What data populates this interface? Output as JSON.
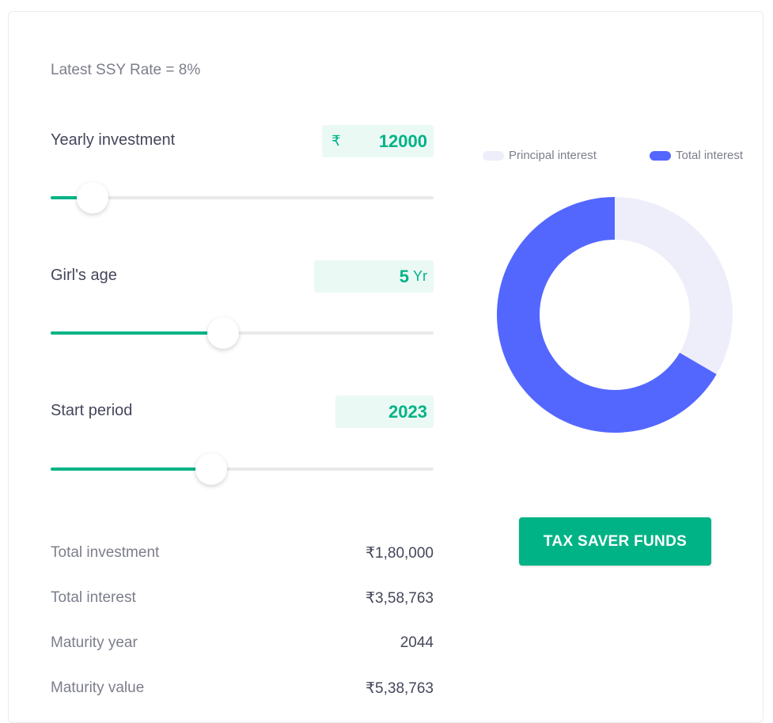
{
  "rate_label": "Latest SSY Rate = 8%",
  "fields": {
    "yearly_investment": {
      "label": "Yearly investment",
      "prefix": "₹",
      "value": "12000",
      "slider_fraction": 0.11
    },
    "girls_age": {
      "label": "Girl's age",
      "value": "5",
      "unit": "Yr",
      "slider_fraction": 0.45
    },
    "start_period": {
      "label": "Start period",
      "value": "2023",
      "slider_fraction": 0.42
    }
  },
  "summary": {
    "total_investment": {
      "label": "Total investment",
      "value": "₹1,80,000"
    },
    "total_interest": {
      "label": "Total interest",
      "value": "₹3,58,763"
    },
    "maturity_year": {
      "label": "Maturity year",
      "value": "2044"
    },
    "maturity_value": {
      "label": "Maturity value",
      "value": "₹5,38,763"
    }
  },
  "chart_data": {
    "type": "pie",
    "series": [
      {
        "name": "Principal interest",
        "value": 180000,
        "color": "#eeeefb"
      },
      {
        "name": "Total interest",
        "value": 358763,
        "color": "#5367ff"
      }
    ]
  },
  "cta_label": "TAX SAVER FUNDS",
  "colors": {
    "accent": "#00b386",
    "chart_principal": "#eeeefb",
    "chart_interest": "#5367ff"
  }
}
